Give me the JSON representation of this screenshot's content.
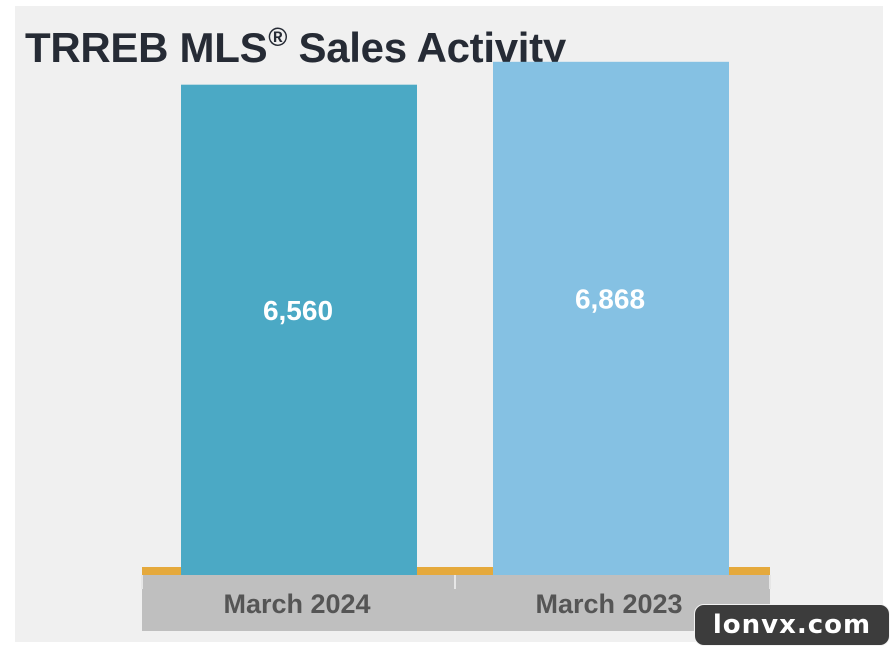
{
  "chart_data": {
    "type": "bar",
    "title": "TRREB MLS",
    "title_mark": "®",
    "title_suffix": " Sales Activity",
    "categories": [
      "March 2024",
      "March 2023"
    ],
    "values": [
      6560,
      6868
    ],
    "value_labels": [
      "6,560",
      "6,868"
    ],
    "colors": [
      "#4ba9c5",
      "#85c1e3"
    ],
    "ylim": [
      0,
      7000
    ],
    "grid": false,
    "legend": "none"
  },
  "watermark": "lonvx.com",
  "colors": {
    "background": "#f0f0f0",
    "baseline": "#e5a93c",
    "axis_band": "#bfbfbf",
    "title": "#262b35"
  }
}
